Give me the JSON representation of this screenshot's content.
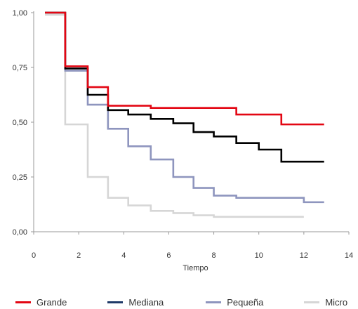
{
  "chart_data": {
    "type": "line",
    "step": true,
    "xlabel": "Tiempo",
    "ylabel": "",
    "xlim": [
      0,
      14
    ],
    "ylim": [
      0,
      1
    ],
    "x_ticks": [
      0,
      2,
      4,
      6,
      8,
      10,
      12,
      14
    ],
    "y_ticks": [
      0,
      0.25,
      0.5,
      0.75,
      1
    ],
    "x_tick_labels": [
      "0",
      "2",
      "4",
      "6",
      "8",
      "10",
      "12",
      "14"
    ],
    "y_tick_labels": [
      "0,00",
      "0,25",
      "0,50",
      "0,75",
      "1,00"
    ],
    "grid": false,
    "legend": "bottom",
    "series": [
      {
        "name": "Grande",
        "color": "#e30613",
        "points": [
          [
            0.5,
            1.0
          ],
          [
            1.4,
            0.755
          ],
          [
            2.4,
            0.66
          ],
          [
            3.3,
            0.575
          ],
          [
            5.2,
            0.565
          ],
          [
            9.0,
            0.535
          ],
          [
            11.0,
            0.49
          ],
          [
            12.9,
            0.49
          ]
        ]
      },
      {
        "name": "Mediana",
        "color": "#000000",
        "legend_color": "#1f3a68",
        "points": [
          [
            0.5,
            1.0
          ],
          [
            1.4,
            0.745
          ],
          [
            2.4,
            0.625
          ],
          [
            3.3,
            0.555
          ],
          [
            4.2,
            0.535
          ],
          [
            5.2,
            0.515
          ],
          [
            6.2,
            0.495
          ],
          [
            7.1,
            0.455
          ],
          [
            8.0,
            0.435
          ],
          [
            9.0,
            0.405
          ],
          [
            10.0,
            0.375
          ],
          [
            11.0,
            0.32
          ],
          [
            12.9,
            0.32
          ]
        ]
      },
      {
        "name": "Pequeña",
        "color": "#8e95be",
        "points": [
          [
            0.5,
            1.0
          ],
          [
            1.4,
            0.735
          ],
          [
            2.4,
            0.58
          ],
          [
            3.3,
            0.47
          ],
          [
            4.2,
            0.39
          ],
          [
            5.2,
            0.33
          ],
          [
            6.2,
            0.25
          ],
          [
            7.1,
            0.2
          ],
          [
            8.0,
            0.165
          ],
          [
            9.0,
            0.155
          ],
          [
            12.0,
            0.135
          ],
          [
            12.9,
            0.135
          ]
        ]
      },
      {
        "name": "Micro",
        "color": "#d6d6d6",
        "points": [
          [
            0.5,
            0.99
          ],
          [
            1.4,
            0.49
          ],
          [
            2.4,
            0.25
          ],
          [
            3.3,
            0.155
          ],
          [
            4.2,
            0.12
          ],
          [
            5.2,
            0.095
          ],
          [
            6.2,
            0.085
          ],
          [
            7.1,
            0.075
          ],
          [
            8.0,
            0.068
          ],
          [
            12.0,
            0.068
          ]
        ]
      }
    ]
  }
}
